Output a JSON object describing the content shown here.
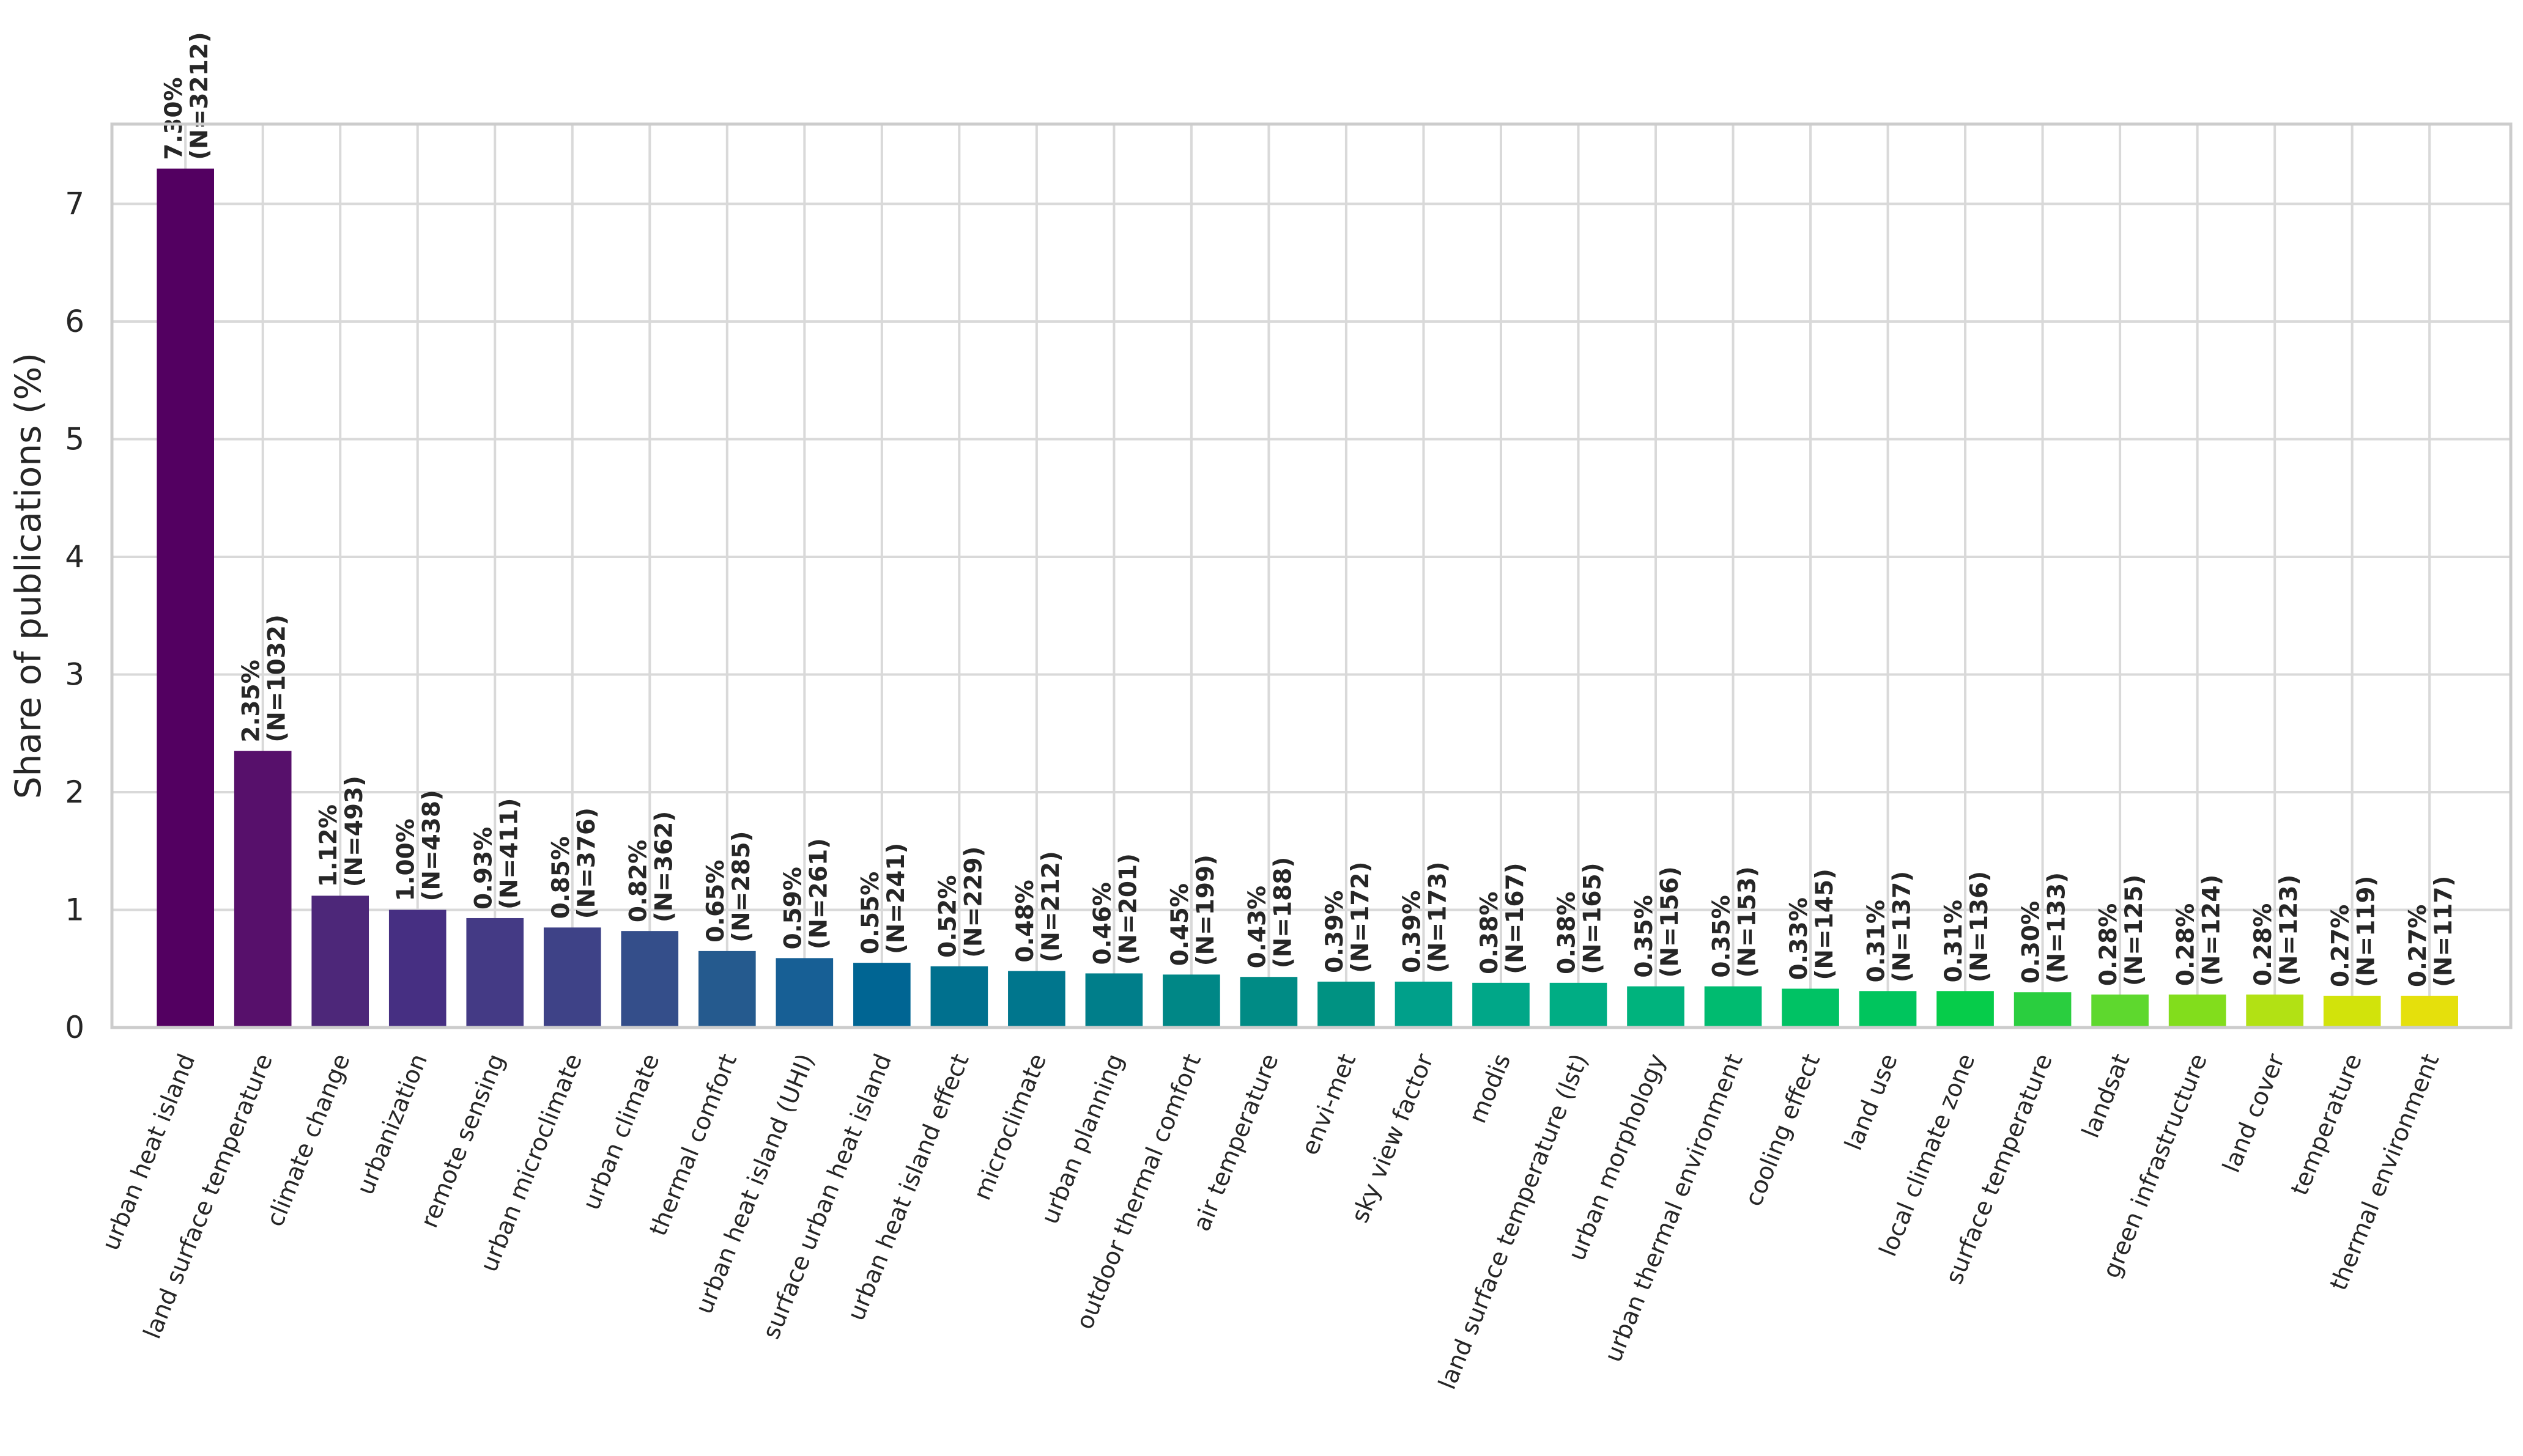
{
  "chart_data": {
    "type": "bar",
    "ylabel": "Share of publications (%)",
    "xlabel": "",
    "ylim": [
      0,
      7.68
    ],
    "yticks": [
      "0",
      "1",
      "2",
      "3",
      "4",
      "5",
      "6",
      "7"
    ],
    "grid": true,
    "legend": "none",
    "categories": [
      "urban heat island",
      "land surface temperature",
      "climate change",
      "urbanization",
      "remote sensing",
      "urban microclimate",
      "urban climate",
      "thermal comfort",
      "urban heat island (UHI)",
      "surface urban heat island",
      "urban heat island effect",
      "microclimate",
      "urban planning",
      "outdoor thermal comfort",
      "air temperature",
      "envi-met",
      "sky view factor",
      "modis",
      "land surface temperature (lst)",
      "urban morphology",
      "urban thermal environment",
      "cooling effect",
      "land use",
      "local climate zone",
      "surface temperature",
      "landsat",
      "green infrastructure",
      "land cover",
      "temperature",
      "thermal environment"
    ],
    "values": [
      7.3,
      2.35,
      1.12,
      1.0,
      0.93,
      0.85,
      0.82,
      0.65,
      0.59,
      0.55,
      0.52,
      0.48,
      0.46,
      0.45,
      0.43,
      0.39,
      0.39,
      0.38,
      0.38,
      0.35,
      0.35,
      0.33,
      0.31,
      0.31,
      0.3,
      0.28,
      0.28,
      0.28,
      0.27,
      0.27
    ],
    "pct_labels": [
      "7.30%",
      "2.35%",
      "1.12%",
      "1.00%",
      "0.93%",
      "0.85%",
      "0.82%",
      "0.65%",
      "0.59%",
      "0.55%",
      "0.52%",
      "0.48%",
      "0.46%",
      "0.45%",
      "0.43%",
      "0.39%",
      "0.39%",
      "0.38%",
      "0.38%",
      "0.35%",
      "0.35%",
      "0.33%",
      "0.31%",
      "0.31%",
      "0.30%",
      "0.28%",
      "0.28%",
      "0.28%",
      "0.27%",
      "0.27%"
    ],
    "n_labels": [
      "(N=3212)",
      "(N=1032)",
      "(N=493)",
      "(N=438)",
      "(N=411)",
      "(N=376)",
      "(N=362)",
      "(N=285)",
      "(N=261)",
      "(N=241)",
      "(N=229)",
      "(N=212)",
      "(N=201)",
      "(N=199)",
      "(N=188)",
      "(N=172)",
      "(N=173)",
      "(N=167)",
      "(N=165)",
      "(N=156)",
      "(N=153)",
      "(N=145)",
      "(N=137)",
      "(N=136)",
      "(N=133)",
      "(N=125)",
      "(N=124)",
      "(N=123)",
      "(N=119)",
      "(N=117)"
    ],
    "colors": [
      "#440154",
      "#481467",
      "#482576",
      "#453781",
      "#3f4788",
      "#39558c",
      "#32648e",
      "#2d718e",
      "#287d8e",
      "#238a8d",
      "#1f968b",
      "#20a386",
      "#29af7f",
      "#3dbc74",
      "#56c667",
      "#75d054",
      "#95d840",
      "#b8de29",
      "#dde318",
      "#fde725",
      "#440154",
      "#440154",
      "#440154",
      "#440154",
      "#440154",
      "#440154",
      "#440154",
      "#440154",
      "#440154",
      "#440154"
    ],
    "bar_colors": [
      "#530061",
      "#57106b",
      "#4d2779",
      "#462f82",
      "#443a85",
      "#3e4287",
      "#344e8a",
      "#255a8e",
      "#175f95",
      "#006593",
      "#00708e",
      "#00768d",
      "#007e8a",
      "#008786",
      "#008b85",
      "#009282",
      "#00a08a",
      "#00a788",
      "#00ad84",
      "#00b37d",
      "#00bb70",
      "#00c264",
      "#00c55d",
      "#06cc4a",
      "#2ace3f",
      "#5ed82e",
      "#82dd1c",
      "#b2e114",
      "#d2e30b",
      "#e5e00c"
    ]
  }
}
